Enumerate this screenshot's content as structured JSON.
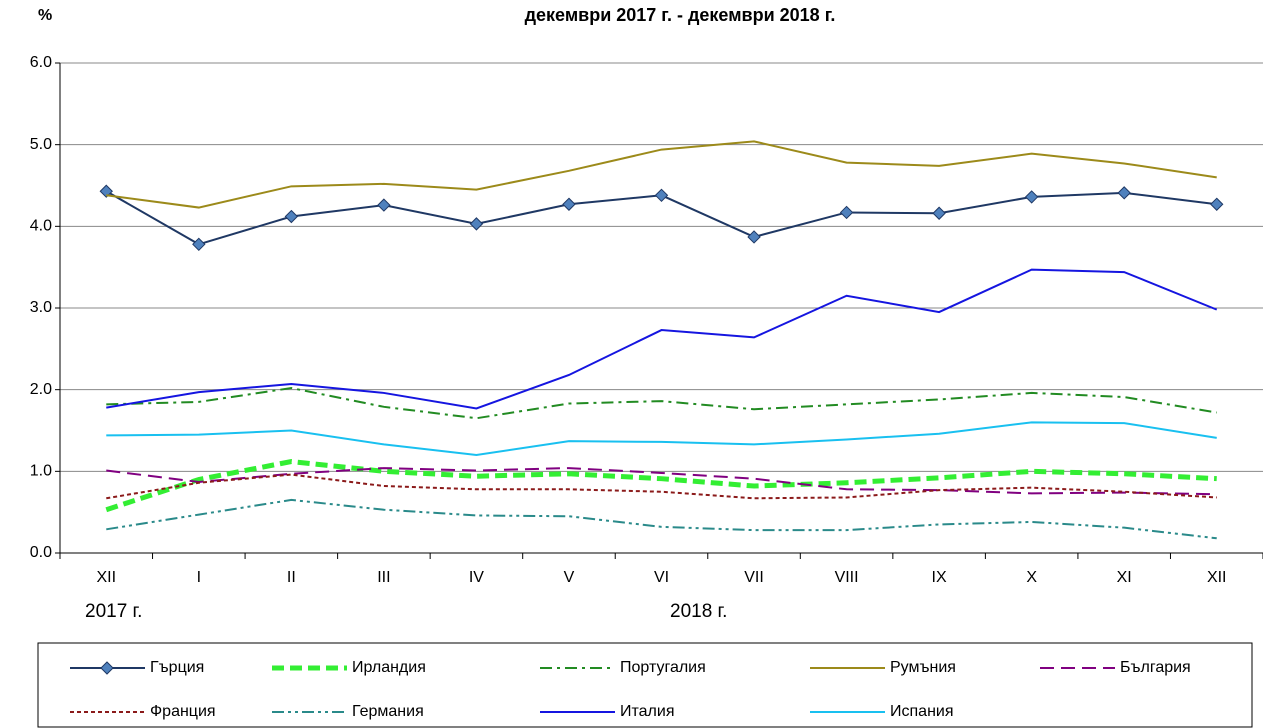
{
  "chart_data": {
    "type": "line",
    "title": "декември 2017 г. - декември 2018 г.",
    "y_label": "%",
    "year_labels": [
      "2017 г.",
      "2018 г."
    ],
    "categories": [
      "XII",
      "I",
      "II",
      "III",
      "IV",
      "V",
      "VI",
      "VII",
      "VIII",
      "IX",
      "X",
      "XI",
      "XII"
    ],
    "ylim": [
      0,
      6
    ],
    "yticks": [
      {
        "value": 0,
        "label": "0.0"
      },
      {
        "value": 1,
        "label": "1.0"
      },
      {
        "value": 2,
        "label": "2.0"
      },
      {
        "value": 3,
        "label": "3.0"
      },
      {
        "value": 4,
        "label": "4.0"
      },
      {
        "value": 5,
        "label": "5.0"
      },
      {
        "value": 6,
        "label": "6.0"
      }
    ],
    "grid": true,
    "legend": "bottom",
    "series": [
      {
        "name": "Гърция",
        "color": "#1f3864",
        "marker": "diamond",
        "marker_color": "#4f81bd",
        "style": "solid",
        "values": [
          4.43,
          3.78,
          4.12,
          4.26,
          4.03,
          4.27,
          4.38,
          3.87,
          4.17,
          4.16,
          4.36,
          4.41,
          4.27
        ]
      },
      {
        "name": "Ирландия",
        "color": "#33ee33",
        "style": "thick-dashed",
        "values": [
          0.53,
          0.9,
          1.12,
          1.0,
          0.94,
          0.97,
          0.91,
          0.82,
          0.86,
          0.92,
          1.0,
          0.97,
          0.91
        ]
      },
      {
        "name": "Португалия",
        "color": "#228b22",
        "style": "dashdot",
        "values": [
          1.82,
          1.85,
          2.02,
          1.79,
          1.65,
          1.83,
          1.86,
          1.76,
          1.82,
          1.88,
          1.96,
          1.91,
          1.72
        ]
      },
      {
        "name": "Румъния",
        "color": "#9c8a1a",
        "style": "solid",
        "values": [
          4.38,
          4.23,
          4.49,
          4.52,
          4.45,
          4.68,
          4.94,
          5.04,
          4.78,
          4.74,
          4.89,
          4.77,
          4.6
        ]
      },
      {
        "name": "България",
        "color": "#800080",
        "style": "dashed",
        "values": [
          1.01,
          0.87,
          0.97,
          1.04,
          1.01,
          1.04,
          0.98,
          0.91,
          0.78,
          0.77,
          0.73,
          0.74,
          0.72
        ]
      },
      {
        "name": "Франция",
        "color": "#8b1a1a",
        "style": "dotted",
        "values": [
          0.67,
          0.86,
          0.96,
          0.82,
          0.78,
          0.78,
          0.75,
          0.67,
          0.68,
          0.77,
          0.8,
          0.75,
          0.68
        ]
      },
      {
        "name": "Германия",
        "color": "#2a8a8a",
        "style": "dashdotdot",
        "values": [
          0.29,
          0.47,
          0.65,
          0.53,
          0.46,
          0.45,
          0.32,
          0.28,
          0.28,
          0.35,
          0.38,
          0.31,
          0.18
        ]
      },
      {
        "name": "Италия",
        "color": "#1515e0",
        "style": "solid",
        "values": [
          1.78,
          1.97,
          2.07,
          1.96,
          1.77,
          2.18,
          2.73,
          2.64,
          3.15,
          2.95,
          3.47,
          3.44,
          2.98
        ]
      },
      {
        "name": "Испания",
        "color": "#19c0f0",
        "style": "solid",
        "values": [
          1.44,
          1.45,
          1.5,
          1.33,
          1.2,
          1.37,
          1.36,
          1.33,
          1.39,
          1.46,
          1.6,
          1.59,
          1.41
        ]
      }
    ]
  }
}
